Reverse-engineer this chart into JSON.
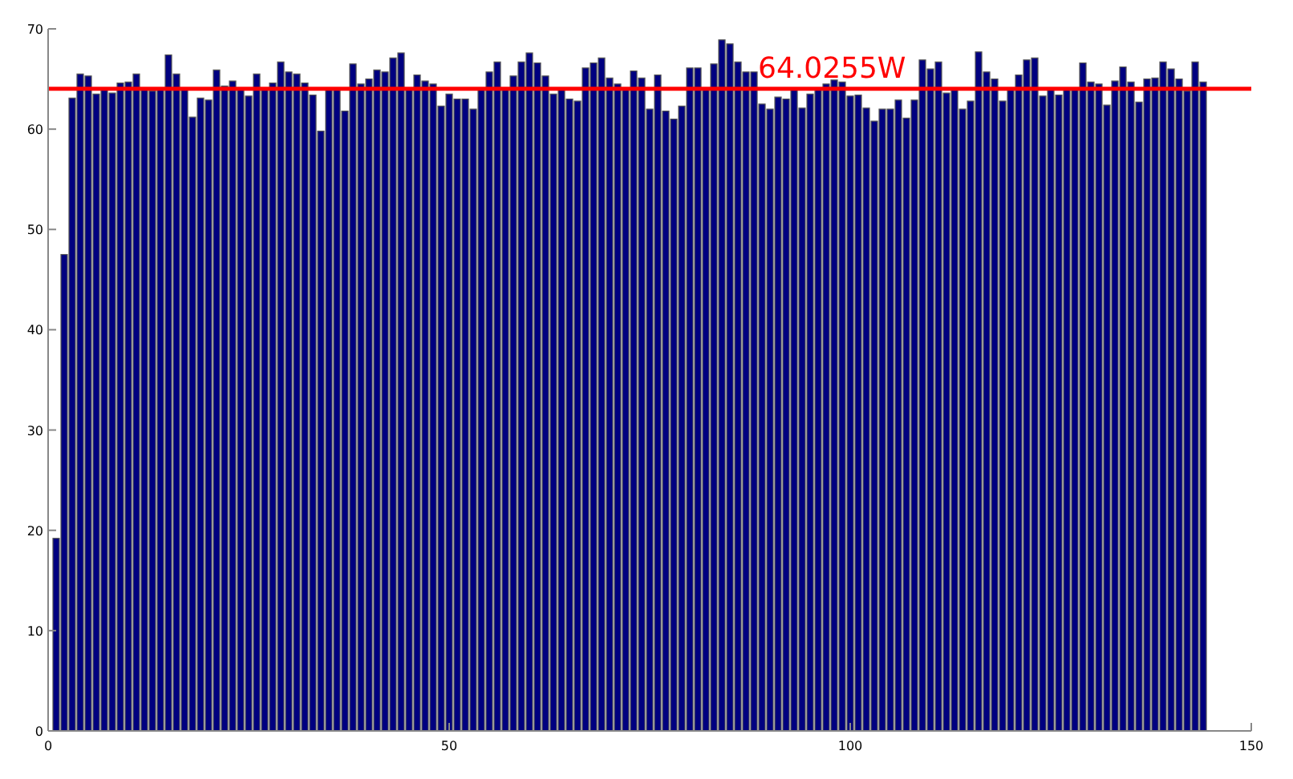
{
  "chart_data": {
    "type": "bar",
    "x": [
      1,
      2,
      3,
      4,
      5,
      6,
      7,
      8,
      9,
      10,
      11,
      12,
      13,
      14,
      15,
      16,
      17,
      18,
      19,
      20,
      21,
      22,
      23,
      24,
      25,
      26,
      27,
      28,
      29,
      30,
      31,
      32,
      33,
      34,
      35,
      36,
      37,
      38,
      39,
      40,
      41,
      42,
      43,
      44,
      45,
      46,
      47,
      48,
      49,
      50,
      51,
      52,
      53,
      54,
      55,
      56,
      57,
      58,
      59,
      60,
      61,
      62,
      63,
      64,
      65,
      66,
      67,
      68,
      69,
      70,
      71,
      72,
      73,
      74,
      75,
      76,
      77,
      78,
      79,
      80,
      81,
      82,
      83,
      84,
      85,
      86,
      87,
      88,
      89,
      90,
      91,
      92,
      93,
      94,
      95,
      96,
      97,
      98,
      99,
      100,
      101,
      102,
      103,
      104,
      105,
      106,
      107,
      108,
      109,
      110,
      111,
      112,
      113,
      114,
      115,
      116,
      117,
      118,
      119,
      120,
      121,
      122,
      123,
      124,
      125,
      126,
      127,
      128,
      129,
      130,
      131,
      132,
      133,
      134,
      135,
      136,
      137,
      138,
      139,
      140,
      141,
      142,
      143,
      144
    ],
    "values": [
      19.2,
      47.5,
      63.1,
      65.5,
      65.3,
      63.5,
      63.9,
      63.6,
      64.6,
      64.7,
      65.5,
      63.9,
      63.8,
      63.9,
      67.4,
      65.5,
      63.9,
      61.2,
      63.1,
      62.9,
      65.9,
      64.3,
      64.8,
      63.9,
      63.3,
      65.5,
      63.9,
      64.6,
      66.7,
      65.7,
      65.5,
      64.6,
      63.4,
      59.8,
      63.9,
      63.9,
      61.8,
      66.5,
      64.5,
      65.0,
      65.9,
      65.7,
      67.1,
      67.6,
      63.9,
      65.4,
      64.8,
      64.5,
      62.3,
      63.5,
      63.0,
      63.0,
      62.0,
      63.9,
      65.7,
      66.7,
      63.9,
      65.3,
      66.7,
      67.6,
      66.6,
      65.3,
      63.5,
      63.9,
      63.0,
      62.8,
      66.1,
      66.6,
      67.1,
      65.1,
      64.5,
      63.9,
      65.8,
      65.1,
      62.0,
      65.4,
      61.8,
      61.0,
      62.3,
      66.1,
      66.1,
      63.9,
      66.5,
      68.9,
      68.5,
      66.7,
      65.7,
      65.7,
      62.5,
      62.0,
      63.2,
      63.0,
      63.9,
      62.1,
      63.5,
      63.9,
      64.5,
      64.9,
      64.7,
      63.3,
      63.4,
      62.1,
      60.8,
      62.0,
      62.0,
      62.9,
      61.1,
      62.9,
      66.9,
      66.0,
      66.7,
      63.6,
      63.9,
      62.0,
      62.8,
      67.7,
      65.7,
      65.0,
      62.8,
      63.9,
      65.4,
      66.9,
      67.1,
      63.3,
      63.9,
      63.4,
      63.9,
      63.9,
      66.6,
      64.7,
      64.5,
      62.4,
      64.8,
      66.2,
      64.7,
      62.7,
      65.0,
      65.1,
      66.7,
      66.0,
      65.0,
      63.8,
      66.7,
      64.7
    ],
    "color": "#000080",
    "xlim": [
      0,
      150
    ],
    "xticks": [
      0,
      50,
      100,
      150
    ],
    "ylim": [
      0,
      70
    ],
    "yticks": [
      0,
      10,
      20,
      30,
      40,
      50,
      60,
      70
    ],
    "ref_lines": [
      {
        "axis": "y",
        "value": 64.0255,
        "label": "64.0255W",
        "color": "#ff0000"
      }
    ]
  }
}
